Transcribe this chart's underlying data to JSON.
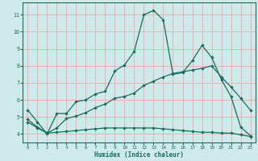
{
  "xlabel": "Humidex (Indice chaleur)",
  "bg_color": "#ceeaea",
  "grid_color": "#f0b0b0",
  "line_color": "#1a6b5e",
  "xlim": [
    -0.5,
    23.5
  ],
  "ylim": [
    3.5,
    11.7
  ],
  "xticks": [
    0,
    1,
    2,
    3,
    4,
    5,
    6,
    7,
    8,
    9,
    10,
    11,
    12,
    13,
    14,
    15,
    16,
    17,
    18,
    19,
    20,
    21,
    22,
    23
  ],
  "yticks": [
    4,
    5,
    6,
    7,
    8,
    9,
    10,
    11
  ],
  "line1_x": [
    0,
    1,
    2,
    3,
    4,
    5,
    6,
    7,
    8,
    9,
    10,
    11,
    12,
    13,
    14,
    15,
    16,
    17,
    18,
    19,
    20,
    21,
    22,
    23
  ],
  "line1_y": [
    5.4,
    4.7,
    4.0,
    5.2,
    5.2,
    5.9,
    6.0,
    6.35,
    6.5,
    7.7,
    8.05,
    8.85,
    11.0,
    11.25,
    10.7,
    7.5,
    7.6,
    8.3,
    9.2,
    8.5,
    7.2,
    6.2,
    4.4,
    3.9
  ],
  "line2_x": [
    0,
    1,
    2,
    3,
    4,
    5,
    6,
    7,
    8,
    9,
    10,
    11,
    12,
    13,
    14,
    15,
    16,
    17,
    18,
    19,
    20,
    21,
    22,
    23
  ],
  "line2_y": [
    4.85,
    4.4,
    4.05,
    4.35,
    4.9,
    5.05,
    5.25,
    5.55,
    5.75,
    6.1,
    6.2,
    6.4,
    6.85,
    7.1,
    7.35,
    7.55,
    7.65,
    7.75,
    7.85,
    8.0,
    7.35,
    6.75,
    6.1,
    5.4
  ],
  "line3_x": [
    0,
    1,
    2,
    3,
    4,
    5,
    6,
    7,
    8,
    9,
    10,
    11,
    12,
    13,
    14,
    15,
    16,
    17,
    18,
    19,
    20,
    21,
    22,
    23
  ],
  "line3_y": [
    4.7,
    4.35,
    4.05,
    4.1,
    4.15,
    4.2,
    4.25,
    4.3,
    4.35,
    4.35,
    4.35,
    4.35,
    4.35,
    4.35,
    4.3,
    4.25,
    4.2,
    4.15,
    4.1,
    4.1,
    4.05,
    4.05,
    3.95,
    3.85
  ]
}
